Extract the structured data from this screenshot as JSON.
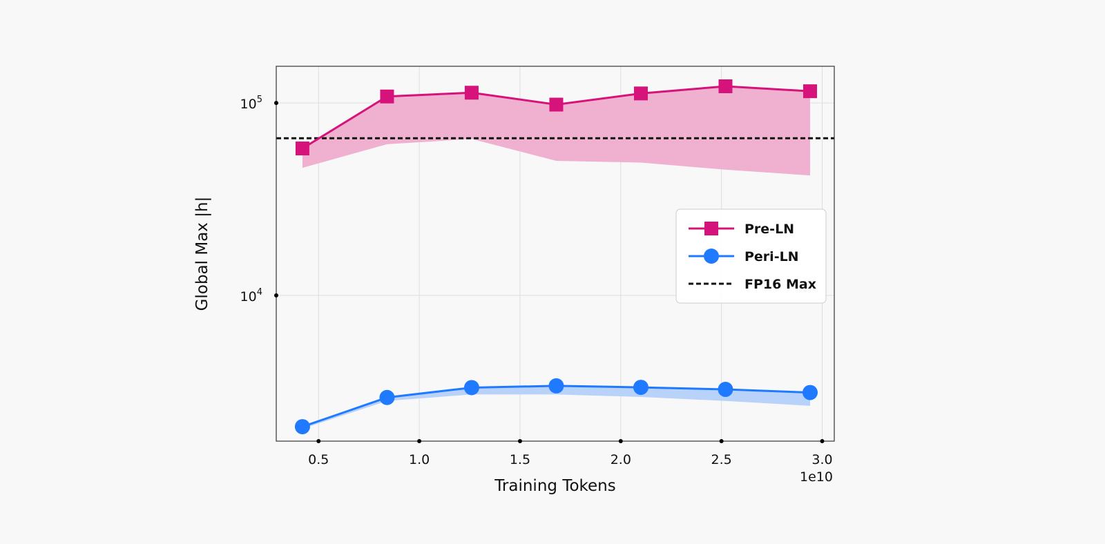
{
  "chart_data": {
    "type": "line",
    "xlabel": "Training Tokens",
    "ylabel": "Global Max |h|",
    "x_offset_label": "1e10",
    "x_scale": "linear",
    "y_scale": "log",
    "xlim": [
      0.29,
      3.06
    ],
    "ylim": [
      1750,
      155000
    ],
    "x_ticks": [
      0.5,
      1.0,
      1.5,
      2.0,
      2.5,
      3.0
    ],
    "x_tick_labels": [
      "0.5",
      "1.0",
      "1.5",
      "2.0",
      "2.5",
      "3.0"
    ],
    "y_ticks": [
      10000,
      100000
    ],
    "y_tick_base": [
      "10",
      "10"
    ],
    "y_tick_exp": [
      "4",
      "5"
    ],
    "grid": true,
    "legend_position": "center-right",
    "x": [
      0.42,
      0.84,
      1.26,
      1.68,
      2.1,
      2.52,
      2.94
    ],
    "series": [
      {
        "name": "Pre-LN",
        "marker": "square",
        "color": "#d6137a",
        "band_color": "#f0b0d0",
        "values": [
          58000,
          108000,
          113000,
          98000,
          112000,
          122000,
          115000
        ],
        "band_lower": [
          46000,
          61000,
          65000,
          50000,
          49000,
          45000,
          42000
        ],
        "band_upper": [
          58000,
          108000,
          113000,
          98000,
          112000,
          122000,
          115000
        ]
      },
      {
        "name": "Peri-LN",
        "marker": "circle",
        "color": "#1f7aff",
        "band_color": "#b9d2fa",
        "values": [
          2080,
          2950,
          3320,
          3390,
          3330,
          3250,
          3130
        ],
        "band_lower": [
          2030,
          2830,
          3060,
          3060,
          2970,
          2830,
          2670
        ],
        "band_upper": [
          2080,
          2950,
          3320,
          3390,
          3330,
          3250,
          3130
        ]
      }
    ],
    "reference_line": {
      "name": "FP16 Max",
      "value": 65504,
      "style": "dashed",
      "color": "#111111"
    }
  }
}
